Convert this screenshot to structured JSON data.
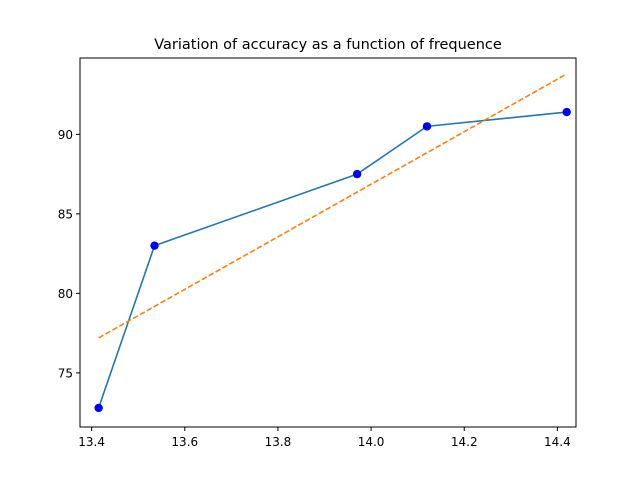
{
  "chart_data": {
    "type": "line",
    "title": "Variation of accuracy as a function of frequence",
    "xlabel": "",
    "ylabel": "",
    "xlim": [
      13.375,
      14.44
    ],
    "ylim": [
      71.6,
      94.8
    ],
    "x_ticks": [
      13.4,
      13.6,
      13.8,
      14.0,
      14.2,
      14.4
    ],
    "x_tick_labels": [
      "13.4",
      "13.6",
      "13.8",
      "14.0",
      "14.2",
      "14.4"
    ],
    "y_ticks": [
      75,
      80,
      85,
      90
    ],
    "y_tick_labels": [
      "75",
      "80",
      "85",
      "90"
    ],
    "grid": false,
    "series": [
      {
        "kind": "line-with-markers",
        "x": [
          13.415,
          13.535,
          13.97,
          14.12,
          14.42
        ],
        "y": [
          72.8,
          83.0,
          87.5,
          90.5,
          91.4
        ],
        "line_color": "#1f77b4",
        "marker_color": "#0000ff"
      },
      {
        "kind": "dashed-fit",
        "x": [
          13.415,
          14.42
        ],
        "y": [
          77.2,
          93.8
        ],
        "line_color": "#ff7f0e"
      }
    ]
  }
}
